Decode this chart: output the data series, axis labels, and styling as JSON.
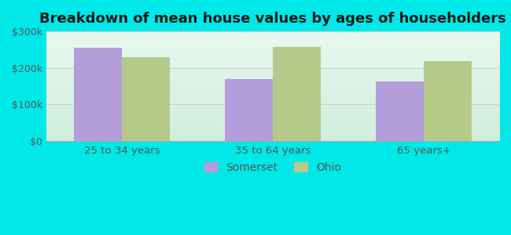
{
  "title": "Breakdown of mean house values by ages of householders",
  "categories": [
    "25 to 34 years",
    "35 to 64 years",
    "65 years+"
  ],
  "somerset_values": [
    255000,
    170000,
    163000
  ],
  "ohio_values": [
    230000,
    258000,
    218000
  ],
  "somerset_color": "#b39ddb",
  "ohio_color": "#b5c98a",
  "bar_width": 0.32,
  "ylim": [
    0,
    300000
  ],
  "yticks": [
    0,
    100000,
    200000,
    300000
  ],
  "ytick_labels": [
    "$0",
    "$100k",
    "$200k",
    "$300k"
  ],
  "outer_bg_color": "#00e8e8",
  "plot_bg_top": "#e8f8f0",
  "plot_bg_bottom": "#d0eedd",
  "title_fontsize": 13,
  "legend_labels": [
    "Somerset",
    "Ohio"
  ],
  "tick_color": "#555555",
  "grid_color": "#c0ddc8"
}
